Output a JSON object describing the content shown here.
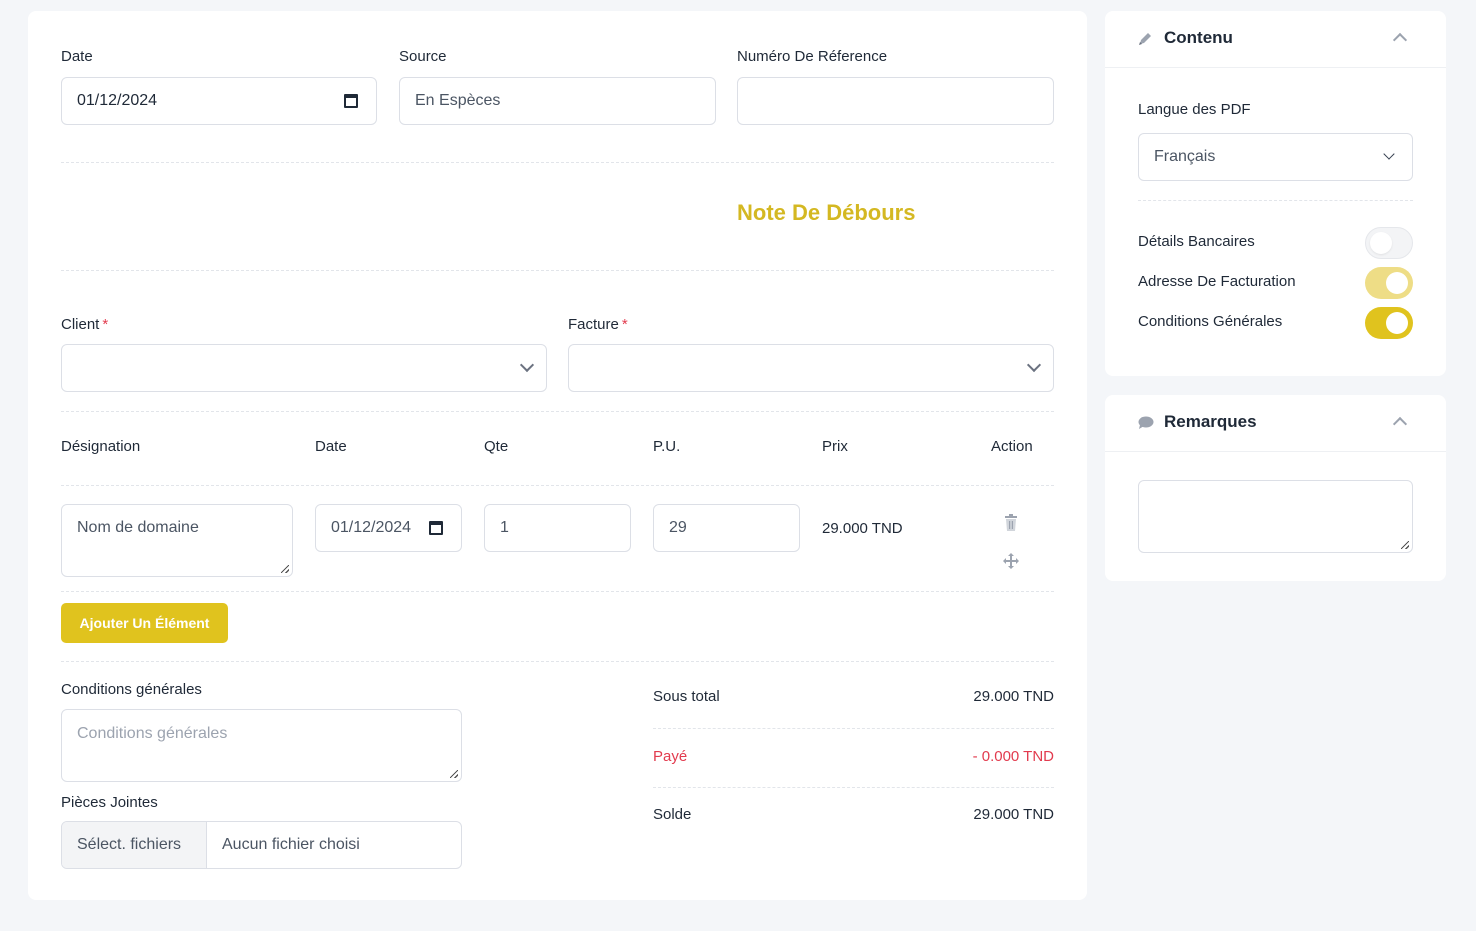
{
  "form": {
    "date_label": "Date",
    "date_value": "01/12/2024",
    "source_label": "Source",
    "source_value": "En Espèces",
    "reference_label": "Numéro De Réference",
    "reference_value": "",
    "doc_title": "Note De Débours",
    "client_label": "Client",
    "client_required": "*",
    "facture_label": "Facture",
    "facture_required": "*"
  },
  "items": {
    "headers": [
      "Désignation",
      "Date",
      "Qte",
      "P.U.",
      "Prix",
      "Action"
    ],
    "rows": [
      {
        "designation": "Nom de domaine",
        "date": "01/12/2024",
        "qte": "1",
        "pu": "29",
        "prix": "29.000 TND"
      }
    ],
    "add_button": "Ajouter Un Élément"
  },
  "conditions": {
    "label": "Conditions générales",
    "placeholder": "Conditions générales"
  },
  "attachments": {
    "label": "Pièces Jointes",
    "button": "Sélect. fichiers",
    "status": "Aucun fichier choisi"
  },
  "totals": {
    "sous_total_label": "Sous total",
    "sous_total_value": "29.000 TND",
    "paye_label": "Payé",
    "paye_value": "- 0.000 TND",
    "solde_label": "Solde",
    "solde_value": "29.000 TND"
  },
  "contenu_panel": {
    "title": "Contenu",
    "langue_label": "Langue des PDF",
    "langue_value": "Français",
    "toggles": [
      {
        "label": "Détails Bancaires",
        "on": false
      },
      {
        "label": "Adresse De Facturation",
        "on": true
      },
      {
        "label": "Conditions Générales",
        "on": true
      }
    ]
  },
  "remarques_panel": {
    "title": "Remarques",
    "value": ""
  },
  "colors": {
    "accent": "#e0c31e",
    "title_accent": "#d4b822",
    "danger": "#e23b4e"
  },
  "icons": {
    "date": "calendar-icon",
    "delete": "trash-icon",
    "move": "move-icon",
    "edit": "pencil-icon",
    "comment": "comment-icon"
  }
}
